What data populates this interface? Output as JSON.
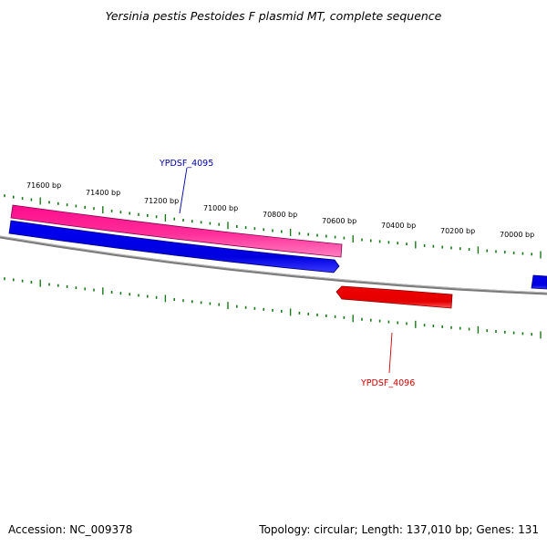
{
  "title": "Yersinia pestis Pestoides F plasmid MT, complete sequence",
  "footer": {
    "accession": "Accession: NC_009378",
    "summary": "Topology: circular; Length: 137,010 bp; Genes: 131"
  },
  "ruler": {
    "tick_labels": [
      "71600 bp",
      "71400 bp",
      "71200 bp",
      "71000 bp",
      "70800 bp",
      "70600 bp",
      "70400 bp",
      "70200 bp",
      "70000 bp"
    ]
  },
  "genes": {
    "ypdsf_4095": {
      "label": "YPDSF_4095",
      "color": "#0000aa"
    },
    "ypdsf_4096": {
      "label": "YPDSF_4096",
      "color": "#cc0000"
    }
  },
  "colors": {
    "backbone": "#808080",
    "tick": "#1a7a1a",
    "pink_feature": "#ff1493",
    "blue_feature": "#0000ee",
    "red_feature": "#ee0000"
  }
}
